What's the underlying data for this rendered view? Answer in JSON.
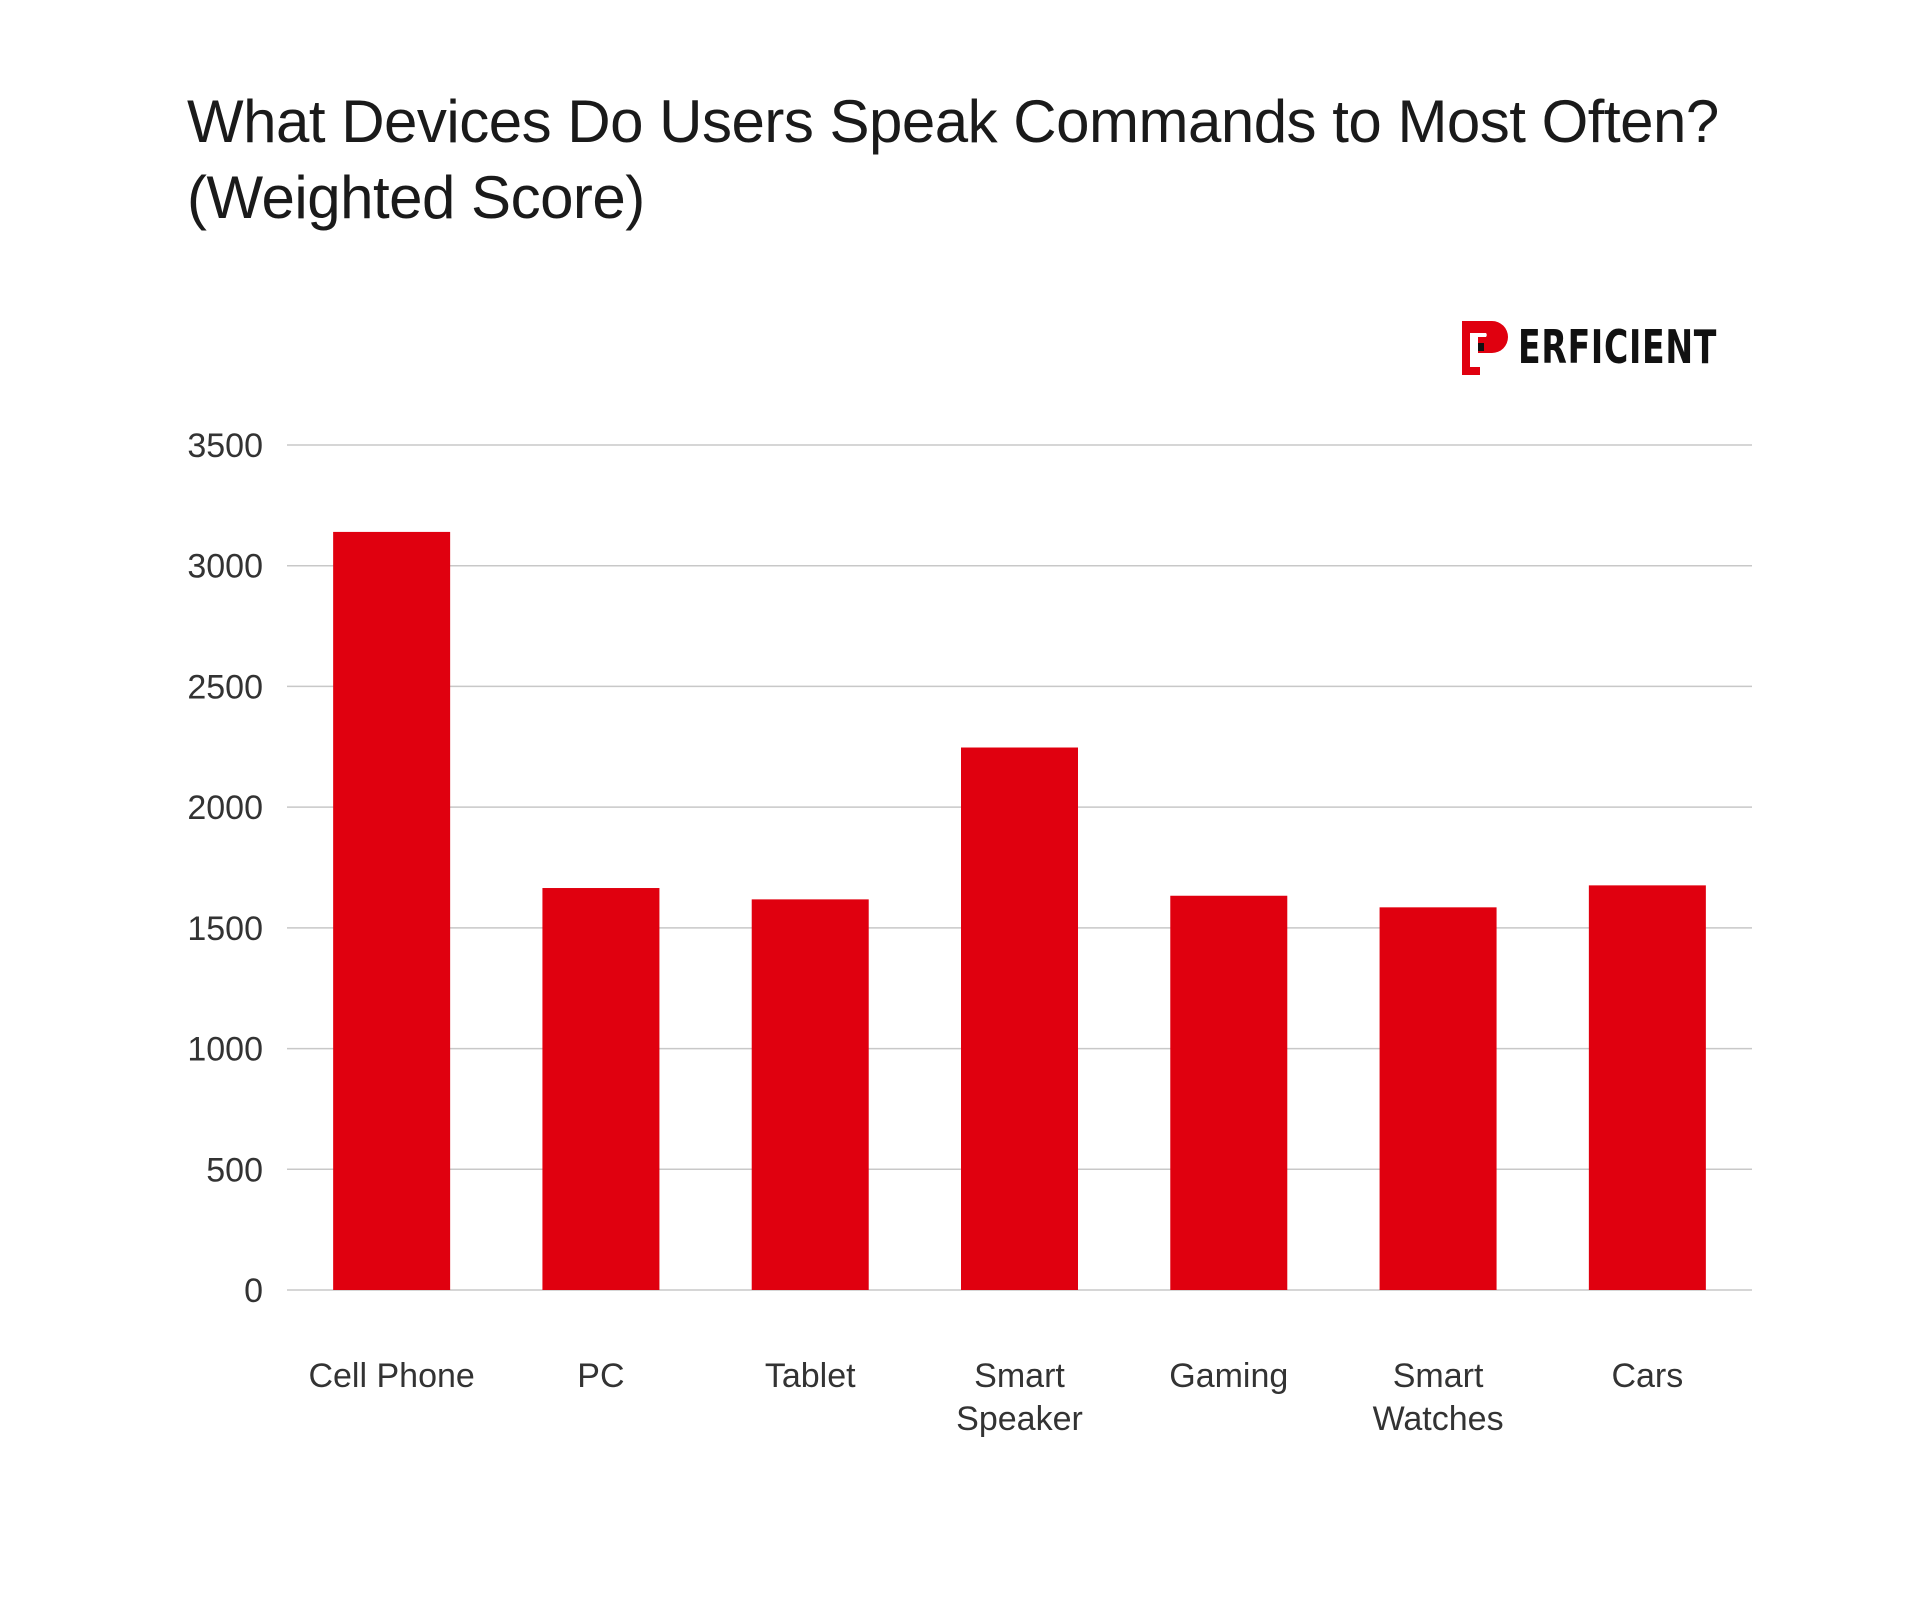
{
  "chart_data": {
    "type": "bar",
    "title": [
      "What Devices Do Users Speak Commands to Most Often?",
      "(Weighted Score)"
    ],
    "categories": [
      [
        "Cell Phone"
      ],
      [
        "PC"
      ],
      [
        "Tablet"
      ],
      [
        "Smart",
        "Speaker"
      ],
      [
        "Gaming"
      ],
      [
        "Smart",
        "Watches"
      ],
      [
        "Cars"
      ]
    ],
    "values": [
      3140,
      1665,
      1618,
      2247,
      1633,
      1585,
      1676
    ],
    "ylim": [
      0,
      3500
    ],
    "yticks": [
      "0",
      "500",
      "1000",
      "1500",
      "2000",
      "2500",
      "3000",
      "3500"
    ],
    "grid": true,
    "legend": "none",
    "bar_color": "#e0000f",
    "grid_color": "#c8c8c8"
  },
  "logo": {
    "text": "ERFICIENT",
    "brand": "PERFICIENT",
    "color": "#e0000f"
  }
}
